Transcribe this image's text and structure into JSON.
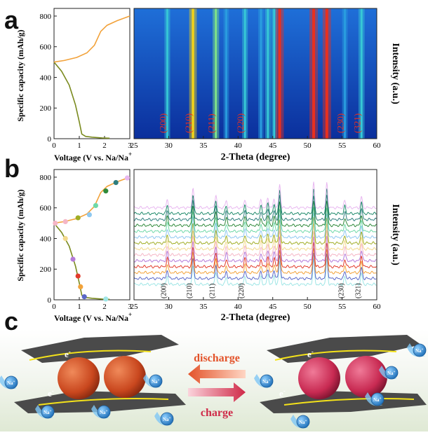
{
  "panels": {
    "a": "a",
    "b": "b",
    "c": "c"
  },
  "axis_text": {
    "ylabel_left": "Specific capacity (mAh/g)",
    "xlabel_left": "Voltage (V vs. Na/Na",
    "xlabel_left_sup": "+",
    "xlabel_right": "2-Theta (degree)",
    "ylabel_right": "Intensity (a.u.)"
  },
  "peaks": [
    {
      "label": "(200)",
      "x": 29.8
    },
    {
      "label": "(210)",
      "x": 33.5
    },
    {
      "label": "(211)",
      "x": 36.8
    },
    {
      "label": "(220)",
      "x": 41.0
    },
    {
      "label": "(230)",
      "x": 55.4
    },
    {
      "label": "(321)",
      "x": 57.8
    }
  ],
  "scene": {
    "discharge_label": "discharge",
    "charge_label": "charge",
    "electron_label": "e",
    "electron_sup": "-",
    "ion_label": "Na",
    "ion_sup": "+"
  },
  "colors": {
    "discharge": "#e3532a",
    "charge": "#cf2a48",
    "sphere_discharged": "#d9562e",
    "sphere_charged": "#d9355c",
    "ion": "#3d9fd8",
    "sheet": "#4a4a4a"
  },
  "chart_data": [
    {
      "type": "line",
      "panel": "a-left",
      "xlim": [
        0,
        3
      ],
      "ylim": [
        0,
        850
      ],
      "xticks": [
        0,
        1,
        2,
        3
      ],
      "yticks": [
        0,
        200,
        400,
        600,
        800
      ],
      "series": [
        {
          "color": "#7a8a1e",
          "x": [
            0,
            0.3,
            0.6,
            0.85,
            1.0,
            1.1,
            1.25,
            1.5,
            1.9,
            2.2
          ],
          "y": [
            500,
            440,
            350,
            220,
            110,
            30,
            15,
            10,
            5,
            3
          ]
        },
        {
          "color": "#f2a23a",
          "x": [
            0,
            0.4,
            0.9,
            1.3,
            1.6,
            1.85,
            2.1,
            2.5,
            3.0
          ],
          "y": [
            500,
            510,
            530,
            560,
            610,
            700,
            740,
            770,
            800
          ]
        }
      ]
    },
    {
      "type": "heatmap",
      "panel": "a-right",
      "xlim": [
        25,
        60
      ],
      "xticks": [
        25,
        30,
        35,
        40,
        45,
        50,
        55,
        60
      ],
      "peak_positions": [
        {
          "x": 29.8,
          "i": 0.35
        },
        {
          "x": 33.5,
          "i": 0.8
        },
        {
          "x": 36.8,
          "i": 0.55
        },
        {
          "x": 38.3,
          "i": 0.3
        },
        {
          "x": 41.0,
          "i": 0.35
        },
        {
          "x": 43.3,
          "i": 0.3
        },
        {
          "x": 44.3,
          "i": 0.4
        },
        {
          "x": 45.2,
          "i": 0.35
        },
        {
          "x": 46.0,
          "i": 0.95
        },
        {
          "x": 50.9,
          "i": 1.0
        },
        {
          "x": 52.8,
          "i": 1.0
        },
        {
          "x": 55.4,
          "i": 0.3
        },
        {
          "x": 57.8,
          "i": 0.45
        }
      ]
    },
    {
      "type": "scatter",
      "panel": "b-left",
      "xlim": [
        0,
        3
      ],
      "ylim": [
        0,
        850
      ],
      "xticks": [
        0,
        1,
        2,
        3
      ],
      "yticks": [
        0,
        200,
        400,
        600,
        800
      ],
      "lines": [
        {
          "color": "#7a8a1e",
          "x": [
            0,
            0.3,
            0.6,
            0.85,
            1.0,
            1.1,
            1.25,
            1.5,
            1.9,
            2.2
          ],
          "y": [
            500,
            440,
            350,
            220,
            110,
            30,
            15,
            10,
            5,
            3
          ]
        },
        {
          "color": "#f2a23a",
          "x": [
            0,
            0.4,
            0.9,
            1.3,
            1.6,
            1.85,
            2.1,
            2.5,
            3.0
          ],
          "y": [
            500,
            510,
            530,
            560,
            610,
            700,
            740,
            770,
            800
          ]
        }
      ],
      "points": [
        {
          "x": 0.05,
          "y": 500,
          "c": "#f5b6c6"
        },
        {
          "x": 0.45,
          "y": 400,
          "c": "#f2d98c"
        },
        {
          "x": 0.75,
          "y": 265,
          "c": "#b47ad9"
        },
        {
          "x": 0.95,
          "y": 155,
          "c": "#e23a2a"
        },
        {
          "x": 1.05,
          "y": 85,
          "c": "#f2a23a"
        },
        {
          "x": 1.2,
          "y": 20,
          "c": "#5a68c8"
        },
        {
          "x": 2.05,
          "y": 5,
          "c": "#9fe6e6"
        },
        {
          "x": 0.45,
          "y": 510,
          "c": "#f5b6c6"
        },
        {
          "x": 0.95,
          "y": 535,
          "c": "#a0ad24"
        },
        {
          "x": 1.4,
          "y": 555,
          "c": "#8ec8f0"
        },
        {
          "x": 1.65,
          "y": 615,
          "c": "#6fd9a8"
        },
        {
          "x": 2.05,
          "y": 710,
          "c": "#2f8a3a"
        },
        {
          "x": 2.45,
          "y": 765,
          "c": "#2e7d7d"
        },
        {
          "x": 2.9,
          "y": 795,
          "c": "#e8b8f0"
        }
      ]
    },
    {
      "type": "line",
      "panel": "b-right",
      "xlim": [
        25,
        60
      ],
      "xticks": [
        25,
        30,
        35,
        40,
        45,
        50,
        55,
        60
      ],
      "series_colors": [
        "#9fe6e6",
        "#5a68c8",
        "#f2a23a",
        "#e23a2a",
        "#b47ad9",
        "#f5b6c6",
        "#f2d98c",
        "#a0ad24",
        "#8ec8f0",
        "#6fd9a8",
        "#2f8a3a",
        "#2e7d7d",
        "#1e8a6a",
        "#e8b8f0"
      ],
      "peak_positions": [
        {
          "x": 29.8,
          "i": 0.35
        },
        {
          "x": 33.5,
          "i": 0.8
        },
        {
          "x": 36.8,
          "i": 0.55
        },
        {
          "x": 38.3,
          "i": 0.3
        },
        {
          "x": 41.0,
          "i": 0.35
        },
        {
          "x": 43.3,
          "i": 0.3
        },
        {
          "x": 44.3,
          "i": 0.4
        },
        {
          "x": 45.2,
          "i": 0.35
        },
        {
          "x": 46.0,
          "i": 0.95
        },
        {
          "x": 50.9,
          "i": 1.0
        },
        {
          "x": 52.8,
          "i": 1.0
        },
        {
          "x": 55.4,
          "i": 0.3
        },
        {
          "x": 57.8,
          "i": 0.45
        }
      ]
    }
  ]
}
